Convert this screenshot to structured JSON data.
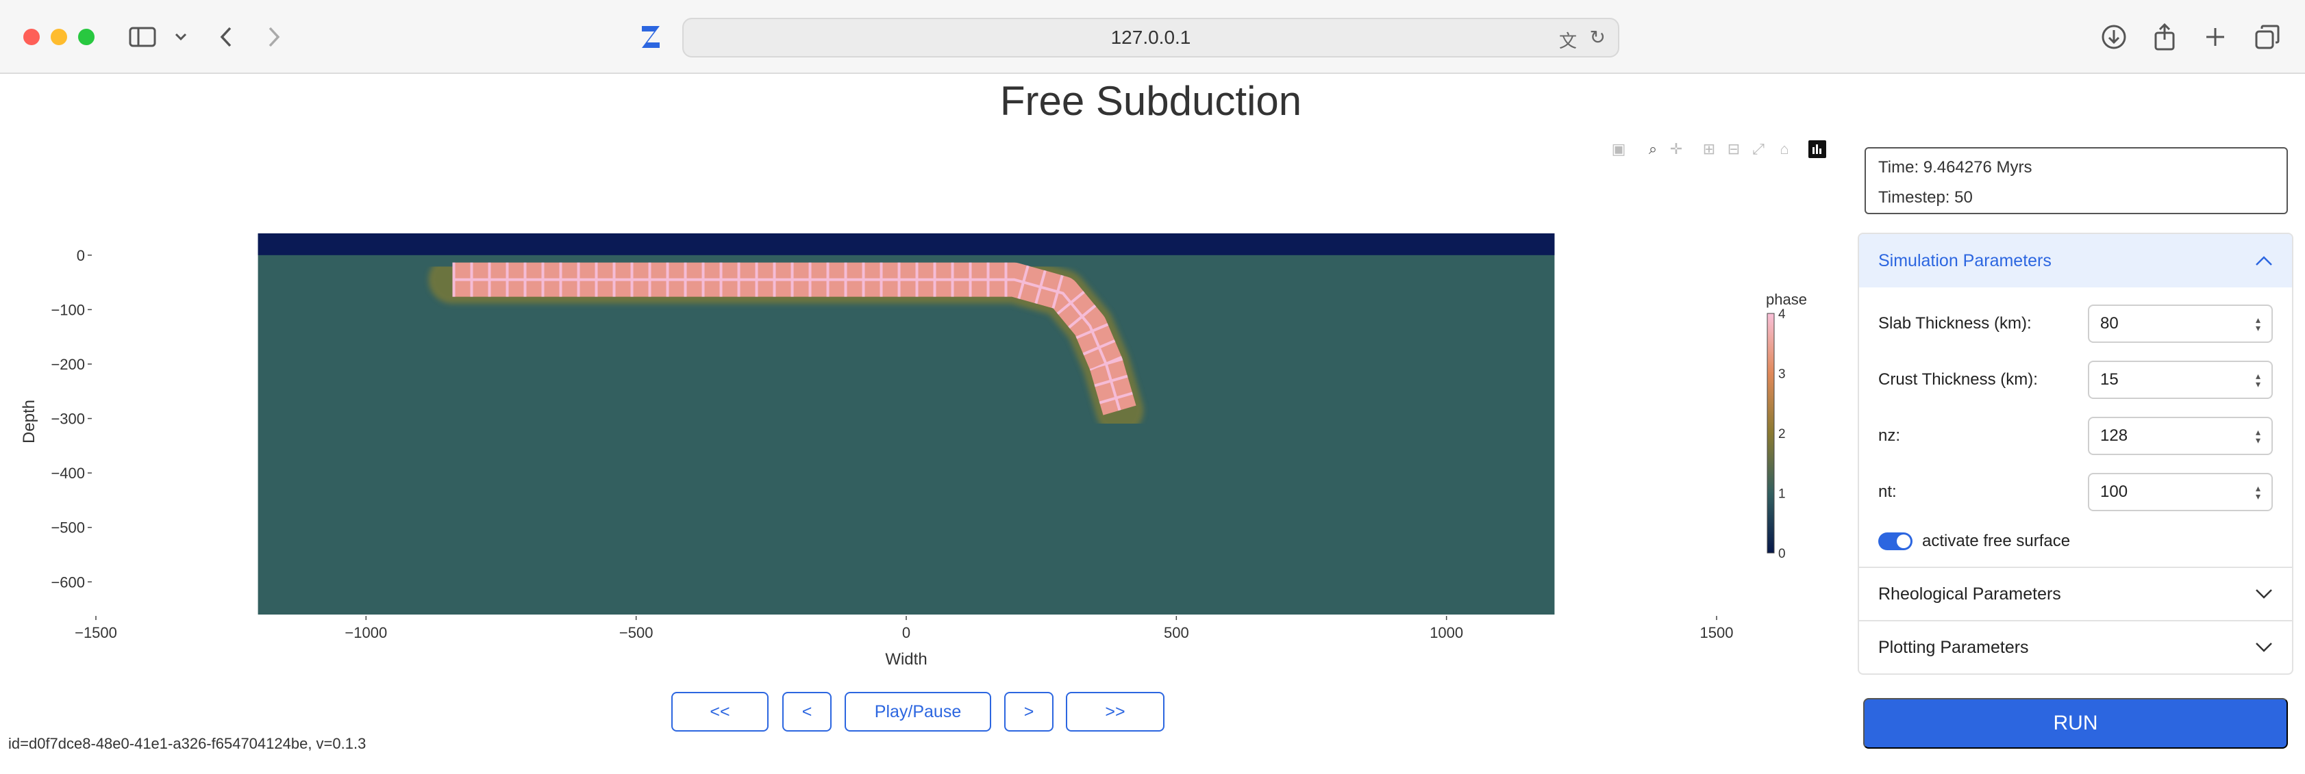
{
  "browser": {
    "url": "127.0.0.1",
    "icons": [
      "sidebar-icon",
      "chevron-down-icon",
      "back-icon",
      "forward-icon",
      "app-logo",
      "translate-icon",
      "reload-icon",
      "download-icon",
      "share-icon",
      "new-tab-icon",
      "tabs-icon"
    ]
  },
  "page": {
    "title": "Free Subduction",
    "footer_id": "id=d0f7dce8-48e0-41e1-a326-f654704124be, v=0.1.3"
  },
  "controls": {
    "first": "<<",
    "prev": "<",
    "play_pause": "Play/Pause",
    "next": ">",
    "last": ">>"
  },
  "status": {
    "time": "Time: 9.464276 Myrs",
    "timestep": "Timestep: 50"
  },
  "panels": {
    "simulation": {
      "title": "Simulation Parameters",
      "fields": [
        {
          "label": "Slab Thickness (km):",
          "value": "80"
        },
        {
          "label": "Crust Thickness (km):",
          "value": "15"
        },
        {
          "label": "nz:",
          "value": "128"
        },
        {
          "label": "nt:",
          "value": "100"
        }
      ],
      "toggle_label": "activate free surface"
    },
    "rheological": {
      "title": "Rheological Parameters"
    },
    "plotting": {
      "title": "Plotting Parameters"
    }
  },
  "run_label": "RUN",
  "chart_data": {
    "type": "heatmap",
    "title": "",
    "xlabel": "Width",
    "ylabel": "Depth",
    "xlim": [
      -1500,
      1500
    ],
    "ylim": [
      -660,
      40
    ],
    "x_ticks": [
      -1500,
      -1000,
      -500,
      0,
      500,
      1000,
      1500
    ],
    "y_ticks": [
      0,
      -100,
      -200,
      -300,
      -400,
      -500,
      -600
    ],
    "x_tick_labels": [
      "−1500",
      "−1000",
      "−500",
      "0",
      "500",
      "1000",
      "1500"
    ],
    "y_tick_labels": [
      "0",
      "−100",
      "−200",
      "−300",
      "−400",
      "−500",
      "−600"
    ],
    "domain_x": [
      -1200,
      1200
    ],
    "domain_y": [
      -660,
      40
    ],
    "colorbar": {
      "title": "phase",
      "range": [
        0,
        4
      ],
      "ticks": [
        "0",
        "1",
        "2",
        "3",
        "4"
      ],
      "colors": [
        "#08184a",
        "#335f5f",
        "#8a7a32",
        "#e0895a",
        "#f8c0d8"
      ]
    },
    "phases": {
      "air": {
        "phase": 0,
        "color": "#0a1a55"
      },
      "mantle": {
        "phase": 1,
        "color": "#335f5f"
      },
      "slab": {
        "phase": 3,
        "color": "#e9988d"
      },
      "crust": {
        "phase": 4,
        "color": "#f5bcd6"
      }
    },
    "surface_depth": 0,
    "slab_path": [
      {
        "x": -840,
        "y": -45
      },
      {
        "x": 200,
        "y": -45
      },
      {
        "x": 290,
        "y": -70
      },
      {
        "x": 340,
        "y": -130
      },
      {
        "x": 370,
        "y": -200
      },
      {
        "x": 395,
        "y": -285
      }
    ]
  }
}
